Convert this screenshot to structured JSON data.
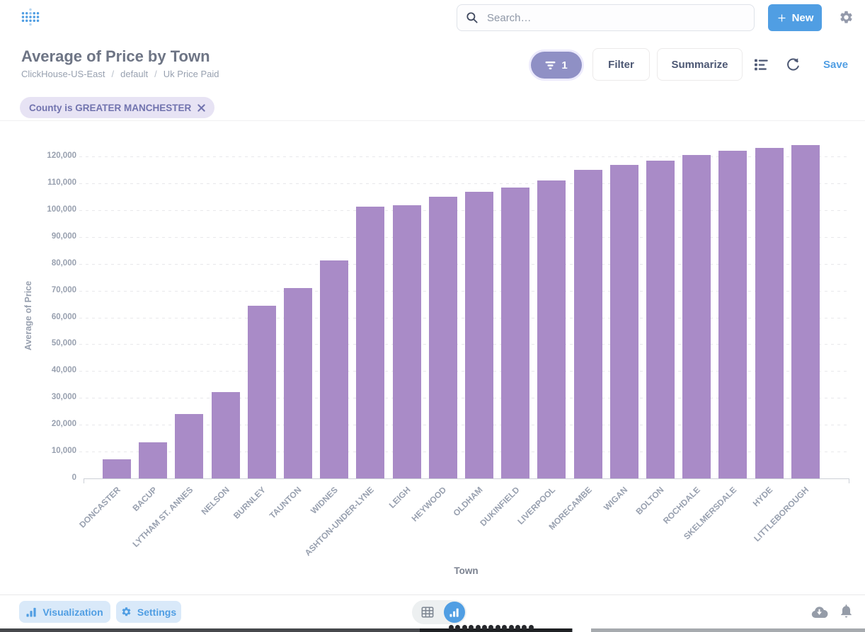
{
  "header": {
    "search_placeholder": "Search…",
    "new_label": "New"
  },
  "title_bar": {
    "title": "Average of Price by Town",
    "breadcrumb": [
      "ClickHouse-US-East",
      "default",
      "Uk Price Paid"
    ],
    "breadcrumb_separator": "/",
    "filter_count": "1",
    "filter_label": "Filter",
    "summarize_label": "Summarize",
    "save_label": "Save"
  },
  "filter_chip": {
    "label": "County is GREATER MANCHESTER"
  },
  "chart_data": {
    "type": "bar",
    "title": "Average of Price by Town",
    "xlabel": "Town",
    "ylabel": "Average of Price",
    "ylim": [
      0,
      127000
    ],
    "ytick_interval": 10000,
    "grid": "horizontal-dashed",
    "legend": "none",
    "bar_color": "#A98BC7",
    "yticks": [
      0,
      10000,
      20000,
      30000,
      40000,
      50000,
      60000,
      70000,
      80000,
      90000,
      100000,
      110000,
      120000
    ],
    "ytick_labels": [
      "0",
      "10,000",
      "20,000",
      "30,000",
      "40,000",
      "50,000",
      "60,000",
      "70,000",
      "80,000",
      "90,000",
      "100,000",
      "110,000",
      "120,000"
    ],
    "categories": [
      "DONCASTER",
      "BACUP",
      "LYTHAM ST. ANNES",
      "NELSON",
      "BURNLEY",
      "TAUNTON",
      "WIDNES",
      "ASHTON-UNDER-LYNE",
      "LEIGH",
      "HEYWOOD",
      "OLDHAM",
      "DUKINFIELD",
      "LIVERPOOL",
      "MORECAMBE",
      "WIGAN",
      "BOLTON",
      "ROCHDALE",
      "SKELMERSDALE",
      "HYDE",
      "LITTLEBOROUGH"
    ],
    "values": [
      7100,
      13500,
      24100,
      32100,
      64300,
      70900,
      81200,
      101400,
      101900,
      105000,
      106700,
      108500,
      111000,
      115100,
      116900,
      118400,
      120400,
      122000,
      123100,
      124100
    ]
  },
  "footer": {
    "visualization_label": "Visualization",
    "settings_label": "Settings"
  },
  "colors": {
    "brand_blue": "#509EE3",
    "bar_purple": "#A98BC7",
    "filter_pill": "#8F90C5",
    "chip_bg": "#E7E3F4",
    "chip_text": "#7173AE",
    "text_dark": "#4C5773",
    "text_muted": "#98A0AF"
  }
}
